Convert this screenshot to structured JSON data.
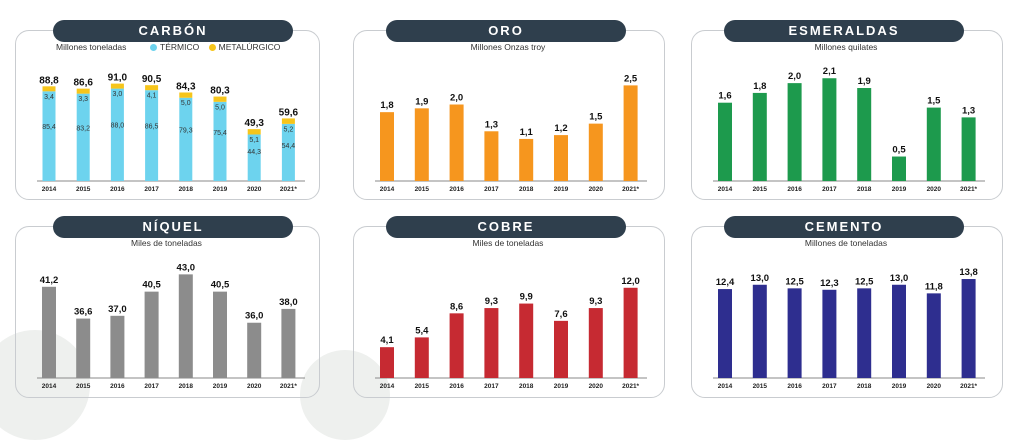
{
  "colors": {
    "pill": "#2f3f4d",
    "termico": "#6dd3ee",
    "metalurgico": "#f6c51b",
    "oro": "#f6961e",
    "esmeraldas": "#1d9a4d",
    "niquel": "#8c8c8c",
    "cobre": "#c62a32",
    "cemento": "#2e2e8f"
  },
  "chart_data": [
    {
      "id": "carbon",
      "type": "bar",
      "stacked": true,
      "title": "CARBÓN",
      "unit": "Millones toneladas",
      "legend": [
        "TÉRMICO",
        "METALÚRGICO"
      ],
      "categories": [
        "2014",
        "2015",
        "2016",
        "2017",
        "2018",
        "2019",
        "2020",
        "2021*"
      ],
      "series": [
        {
          "name": "TÉRMICO",
          "values": [
            85.4,
            83.2,
            88.0,
            86.5,
            79.3,
            75.4,
            44.3,
            54.4
          ],
          "labels": [
            "85,4",
            "83,2",
            "88,0",
            "86,5",
            "79,3",
            "75,4",
            "44,3",
            "54,4"
          ]
        },
        {
          "name": "METALÚRGICO",
          "values": [
            3.4,
            3.3,
            3.0,
            4.1,
            5.0,
            5.0,
            5.1,
            5.2
          ],
          "labels": [
            "3,4",
            "3,3",
            "3,0",
            "4,1",
            "5,0",
            "5,0",
            "5,1",
            "5,2"
          ]
        }
      ],
      "totals": [
        "88,8",
        "86,6",
        "91,0",
        "90,5",
        "84,3",
        "80,3",
        "49,3",
        "59,6"
      ],
      "ylim": [
        0,
        100
      ]
    },
    {
      "id": "oro",
      "type": "bar",
      "title": "ORO",
      "unit": "Millones Onzas troy",
      "categories": [
        "2014",
        "2015",
        "2016",
        "2017",
        "2018",
        "2019",
        "2020",
        "2021*"
      ],
      "values": [
        1.8,
        1.9,
        2.0,
        1.3,
        1.1,
        1.2,
        1.5,
        2.5
      ],
      "labels": [
        "1,8",
        "1,9",
        "2,0",
        "1,3",
        "1,1",
        "1,2",
        "1,5",
        "2,5"
      ],
      "ylim": [
        0,
        2.85
      ]
    },
    {
      "id": "esmeraldas",
      "type": "bar",
      "title": "ESMERALDAS",
      "unit": "Millones quilates",
      "categories": [
        "2014",
        "2015",
        "2016",
        "2017",
        "2018",
        "2019",
        "2020",
        "2021*"
      ],
      "values": [
        1.6,
        1.8,
        2.0,
        2.1,
        1.9,
        0.5,
        1.5,
        1.3
      ],
      "labels": [
        "1,6",
        "1,8",
        "2,0",
        "2,1",
        "1,9",
        "0,5",
        "1,5",
        "1,3"
      ],
      "ylim": [
        0,
        2.35
      ]
    },
    {
      "id": "niquel",
      "type": "bar",
      "title": "NÍQUEL",
      "unit": "Miles de toneladas",
      "categories": [
        "2014",
        "2015",
        "2016",
        "2017",
        "2018",
        "2019",
        "2020",
        "2021*"
      ],
      "values": [
        41.2,
        36.6,
        37.0,
        40.5,
        43.0,
        40.5,
        36.0,
        38.0
      ],
      "labels": [
        "41,2",
        "36,6",
        "37,0",
        "40,5",
        "43,0",
        "40,5",
        "36,0",
        "38,0"
      ],
      "ylim": [
        28,
        44.5
      ]
    },
    {
      "id": "cobre",
      "type": "bar",
      "title": "COBRE",
      "unit": "Miles de toneladas",
      "categories": [
        "2014",
        "2015",
        "2016",
        "2017",
        "2018",
        "2019",
        "2020",
        "2021*"
      ],
      "values": [
        4.1,
        5.4,
        8.6,
        9.3,
        9.9,
        7.6,
        9.3,
        12.0
      ],
      "labels": [
        "4,1",
        "5,4",
        "8,6",
        "9,3",
        "9,9",
        "7,6",
        "9,3",
        "12,0"
      ],
      "ylim": [
        0,
        13.3
      ]
    },
    {
      "id": "cemento",
      "type": "bar",
      "title": "CEMENTO",
      "unit": "Millones de toneladas",
      "categories": [
        "2014",
        "2015",
        "2016",
        "2017",
        "2018",
        "2019",
        "2020",
        "2021*"
      ],
      "values": [
        12.4,
        13.0,
        12.5,
        12.3,
        12.5,
        13.0,
        11.8,
        13.8
      ],
      "labels": [
        "12,4",
        "13,0",
        "12,5",
        "12,3",
        "12,5",
        "13,0",
        "11,8",
        "13,8"
      ],
      "ylim": [
        0,
        14.5
      ]
    }
  ]
}
